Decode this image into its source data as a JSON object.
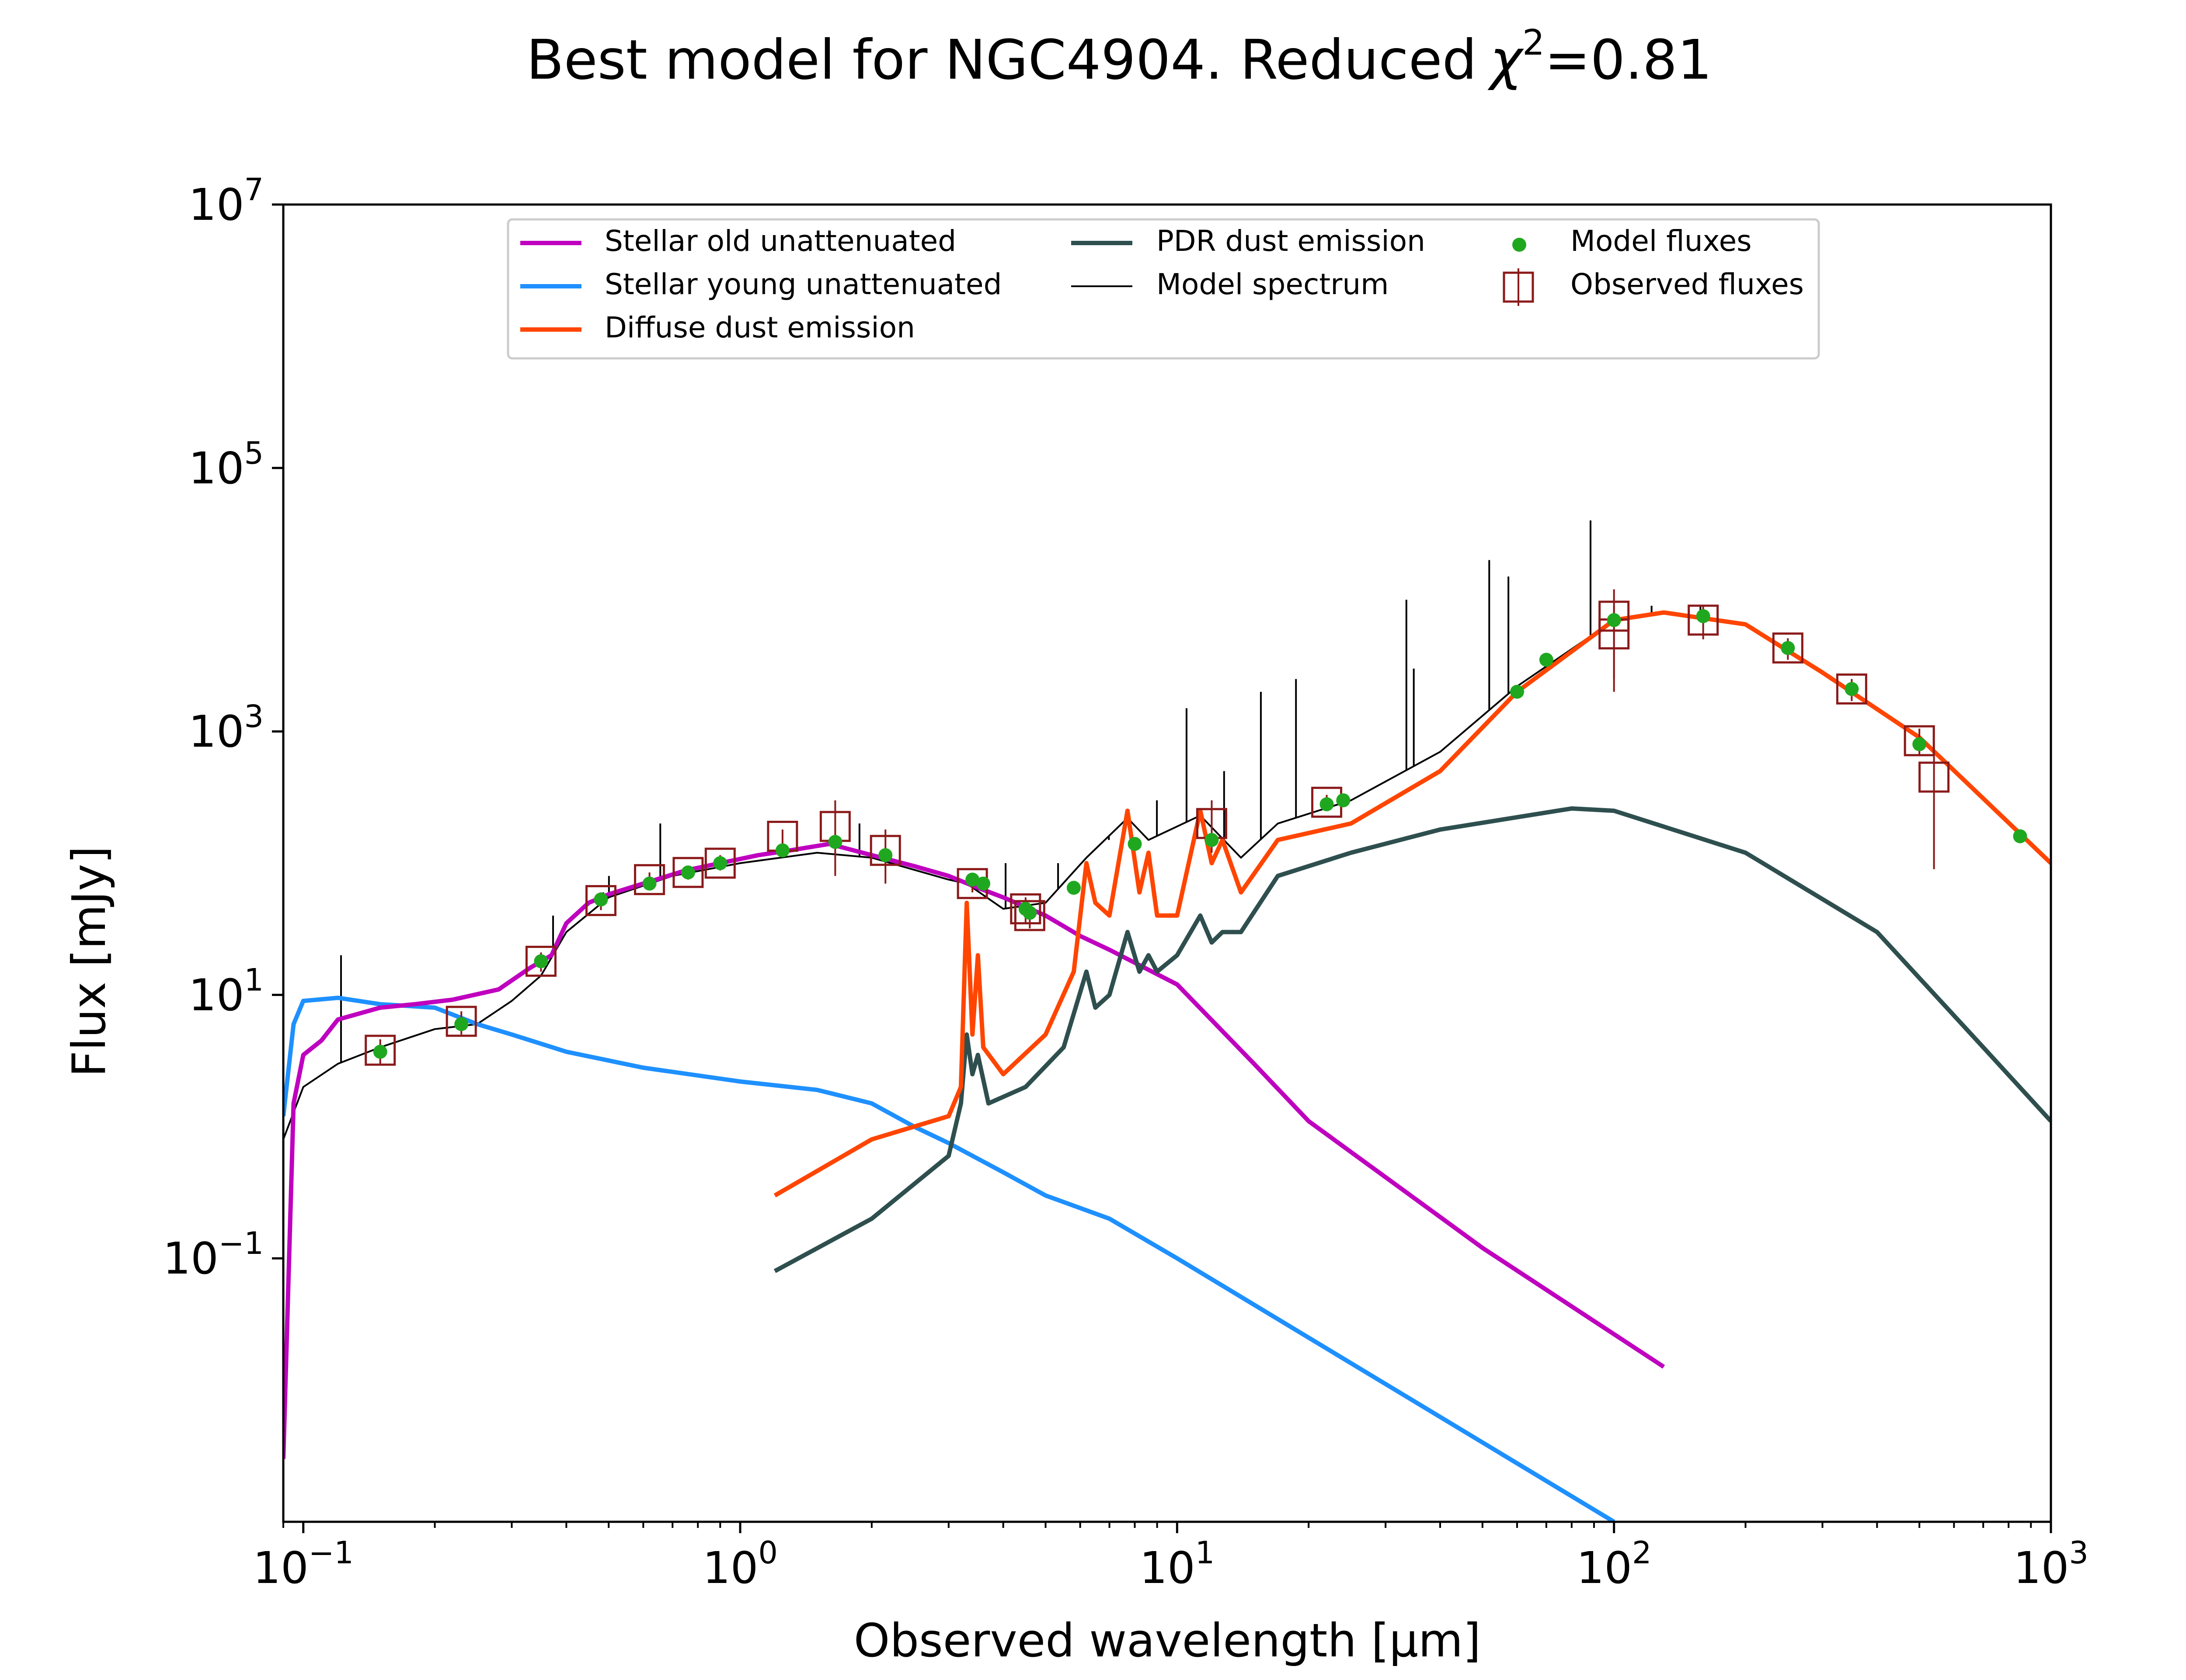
{
  "chart_data": {
    "type": "line",
    "title": "Best model for NGC4904. Reduced",
    "title_chi": "χ",
    "title_chi_exp": "2",
    "title_value": "=0.81",
    "xlabel": "Observed wavelength [μm]",
    "ylabel": "Flux [mJy]",
    "xscale": "log",
    "yscale": "log",
    "xlim": [
      0.09,
      1000
    ],
    "ylim": [
      0.001,
      10000000
    ],
    "grid": false,
    "legend_position": "top-center",
    "x_ticks": [
      {
        "value": 0.1,
        "base": "10",
        "exp": "−1"
      },
      {
        "value": 1,
        "base": "10",
        "exp": "0"
      },
      {
        "value": 10,
        "base": "10",
        "exp": "1"
      },
      {
        "value": 100,
        "base": "10",
        "exp": "2"
      },
      {
        "value": 1000,
        "base": "10",
        "exp": "3"
      }
    ],
    "y_ticks": [
      {
        "value": 0.1,
        "base": "10",
        "exp": "−1"
      },
      {
        "value": 10,
        "base": "10",
        "exp": "1"
      },
      {
        "value": 1000,
        "base": "10",
        "exp": "3"
      },
      {
        "value": 100000,
        "base": "10",
        "exp": "5"
      },
      {
        "value": 10000000,
        "base": "10",
        "exp": "7"
      }
    ],
    "series": [
      {
        "name": "Stellar old unattenuated",
        "color": "#bf00bf",
        "kind": "line",
        "points": [
          [
            0.09,
            0.003
          ],
          [
            0.095,
            1.5
          ],
          [
            0.1,
            3.5
          ],
          [
            0.11,
            4.5
          ],
          [
            0.12,
            6.5
          ],
          [
            0.15,
            8.0
          ],
          [
            0.18,
            8.5
          ],
          [
            0.22,
            9.2
          ],
          [
            0.28,
            11.0
          ],
          [
            0.33,
            16.0
          ],
          [
            0.37,
            20.0
          ],
          [
            0.4,
            35.0
          ],
          [
            0.45,
            50.0
          ],
          [
            0.5,
            58.0
          ],
          [
            0.6,
            70.0
          ],
          [
            0.75,
            88.0
          ],
          [
            0.9,
            100.0
          ],
          [
            1.1,
            115.0
          ],
          [
            1.3,
            125.0
          ],
          [
            1.6,
            140.0
          ],
          [
            2.0,
            115.0
          ],
          [
            2.5,
            95.0
          ],
          [
            3.0,
            80.0
          ],
          [
            3.5,
            65.0
          ],
          [
            4.0,
            55.0
          ],
          [
            5.0,
            40.0
          ],
          [
            6.0,
            28.0
          ],
          [
            7.0,
            22.0
          ],
          [
            10.0,
            12.0
          ],
          [
            15.0,
            3.0
          ],
          [
            20.0,
            1.1
          ],
          [
            50.0,
            0.12
          ],
          [
            130.0,
            0.015
          ]
        ]
      },
      {
        "name": "Stellar young unattenuated",
        "color": "#1e90ff",
        "kind": "line",
        "points": [
          [
            0.09,
            1.2
          ],
          [
            0.095,
            6.0
          ],
          [
            0.1,
            9.0
          ],
          [
            0.12,
            9.5
          ],
          [
            0.15,
            8.5
          ],
          [
            0.2,
            8.0
          ],
          [
            0.25,
            6.0
          ],
          [
            0.3,
            5.0
          ],
          [
            0.4,
            3.7
          ],
          [
            0.6,
            2.8
          ],
          [
            1.0,
            2.2
          ],
          [
            1.5,
            1.9
          ],
          [
            2.0,
            1.5
          ],
          [
            2.5,
            1.0
          ],
          [
            3.0,
            0.75
          ],
          [
            4.0,
            0.45
          ],
          [
            5.0,
            0.3
          ],
          [
            7.0,
            0.2
          ],
          [
            10.0,
            0.1
          ],
          [
            20.0,
            0.025
          ],
          [
            50.0,
            0.004
          ],
          [
            100.0,
            0.001
          ]
        ]
      },
      {
        "name": "Diffuse dust emission",
        "color": "#ff4500",
        "kind": "line",
        "points": [
          [
            1.2,
            0.3
          ],
          [
            2.0,
            0.8
          ],
          [
            3.0,
            1.2
          ],
          [
            3.2,
            2.0
          ],
          [
            3.3,
            50.0
          ],
          [
            3.4,
            5.0
          ],
          [
            3.5,
            20.0
          ],
          [
            3.6,
            4.0
          ],
          [
            4.0,
            2.5
          ],
          [
            5.0,
            5.0
          ],
          [
            5.8,
            15.0
          ],
          [
            6.2,
            100.0
          ],
          [
            6.5,
            50.0
          ],
          [
            7.0,
            40.0
          ],
          [
            7.7,
            250.0
          ],
          [
            8.2,
            60.0
          ],
          [
            8.6,
            120.0
          ],
          [
            9.0,
            40.0
          ],
          [
            10.0,
            40.0
          ],
          [
            11.3,
            250.0
          ],
          [
            12.0,
            100.0
          ],
          [
            12.7,
            150.0
          ],
          [
            14.0,
            60.0
          ],
          [
            17.0,
            150.0
          ],
          [
            25.0,
            200.0
          ],
          [
            40.0,
            500.0
          ],
          [
            60.0,
            2000.0
          ],
          [
            100.0,
            7000.0
          ],
          [
            130.0,
            8000.0
          ],
          [
            200.0,
            6500.0
          ],
          [
            300.0,
            2800.0
          ],
          [
            500.0,
            900.0
          ],
          [
            1000.0,
            100.0
          ]
        ]
      },
      {
        "name": "PDR dust emission",
        "color": "#2f4f4f",
        "kind": "line",
        "points": [
          [
            1.2,
            0.08
          ],
          [
            2.0,
            0.2
          ],
          [
            3.0,
            0.6
          ],
          [
            3.2,
            1.5
          ],
          [
            3.3,
            5.0
          ],
          [
            3.4,
            2.5
          ],
          [
            3.5,
            3.5
          ],
          [
            3.7,
            1.5
          ],
          [
            4.5,
            2.0
          ],
          [
            5.5,
            4.0
          ],
          [
            6.2,
            15.0
          ],
          [
            6.5,
            8.0
          ],
          [
            7.0,
            10.0
          ],
          [
            7.7,
            30.0
          ],
          [
            8.2,
            15.0
          ],
          [
            8.6,
            20.0
          ],
          [
            9.0,
            15.0
          ],
          [
            10.0,
            20.0
          ],
          [
            11.3,
            40.0
          ],
          [
            12.0,
            25.0
          ],
          [
            12.7,
            30.0
          ],
          [
            14.0,
            30.0
          ],
          [
            17.0,
            80.0
          ],
          [
            25.0,
            120.0
          ],
          [
            40.0,
            180.0
          ],
          [
            80.0,
            260.0
          ],
          [
            100.0,
            250.0
          ],
          [
            200.0,
            120.0
          ],
          [
            400.0,
            30.0
          ],
          [
            700.0,
            4.0
          ],
          [
            1000.0,
            1.1
          ]
        ]
      },
      {
        "name": "Model spectrum",
        "color": "#000000",
        "kind": "line",
        "points": [
          [
            0.09,
            0.8
          ],
          [
            0.1,
            2.0
          ],
          [
            0.12,
            3.0
          ],
          [
            0.15,
            4.0
          ],
          [
            0.2,
            5.5
          ],
          [
            0.25,
            6.0
          ],
          [
            0.3,
            9.0
          ],
          [
            0.35,
            14.0
          ],
          [
            0.4,
            30.0
          ],
          [
            0.5,
            55.0
          ],
          [
            0.7,
            80.0
          ],
          [
            1.0,
            100.0
          ],
          [
            1.5,
            120.0
          ],
          [
            2.0,
            110.0
          ],
          [
            3.0,
            75.0
          ],
          [
            3.3,
            70.0
          ],
          [
            4.0,
            45.0
          ],
          [
            5.0,
            50.0
          ],
          [
            6.2,
            110.0
          ],
          [
            7.7,
            220.0
          ],
          [
            8.6,
            150.0
          ],
          [
            11.3,
            230.0
          ],
          [
            14.0,
            110.0
          ],
          [
            17.0,
            200.0
          ],
          [
            25.0,
            300.0
          ],
          [
            40.0,
            700.0
          ],
          [
            60.0,
            2200.0
          ],
          [
            100.0,
            7000.0
          ],
          [
            130.0,
            8000.0
          ],
          [
            200.0,
            6500.0
          ],
          [
            300.0,
            2800.0
          ],
          [
            500.0,
            900.0
          ],
          [
            1000.0,
            100.0
          ]
        ]
      },
      {
        "name": "Model fluxes",
        "color": "#1fa81f",
        "kind": "scatter",
        "points": [
          [
            0.15,
            3.7
          ],
          [
            0.23,
            6.0
          ],
          [
            0.35,
            18.0
          ],
          [
            0.48,
            53.0
          ],
          [
            0.62,
            70.0
          ],
          [
            0.76,
            85.0
          ],
          [
            0.9,
            100.0
          ],
          [
            1.25,
            125.0
          ],
          [
            1.65,
            145.0
          ],
          [
            2.15,
            115.0
          ],
          [
            3.4,
            75.0
          ],
          [
            3.6,
            70.0
          ],
          [
            4.5,
            45.0
          ],
          [
            4.6,
            42.0
          ],
          [
            5.8,
            65.0
          ],
          [
            8.0,
            140.0
          ],
          [
            12.0,
            150.0
          ],
          [
            22.0,
            280.0
          ],
          [
            24.0,
            300.0
          ],
          [
            60.0,
            2000.0
          ],
          [
            70.0,
            3500.0
          ],
          [
            100.0,
            7000.0
          ],
          [
            160.0,
            7500.0
          ],
          [
            250.0,
            4300.0
          ],
          [
            350.0,
            2100.0
          ],
          [
            500.0,
            800.0
          ],
          [
            850.0,
            160.0
          ]
        ]
      },
      {
        "name": "Observed fluxes",
        "color": "#8b1a1a",
        "kind": "errorbar",
        "points": [
          {
            "x": 0.15,
            "y": 3.8,
            "lo": 3.0,
            "hi": 4.6
          },
          {
            "x": 0.23,
            "y": 6.3,
            "lo": 5.0,
            "hi": 7.5
          },
          {
            "x": 0.35,
            "y": 18.0,
            "lo": 15.0,
            "hi": 21.0
          },
          {
            "x": 0.48,
            "y": 52.0,
            "lo": 44.0,
            "hi": 60.0
          },
          {
            "x": 0.62,
            "y": 75.0,
            "lo": 65.0,
            "hi": 85.0
          },
          {
            "x": 0.76,
            "y": 85.0,
            "lo": 75.0,
            "hi": 95.0
          },
          {
            "x": 0.9,
            "y": 100.0,
            "lo": 88.0,
            "hi": 115.0
          },
          {
            "x": 1.25,
            "y": 160.0,
            "lo": 140.0,
            "hi": 180.0
          },
          {
            "x": 1.65,
            "y": 190.0,
            "lo": 80.0,
            "hi": 300.0
          },
          {
            "x": 2.15,
            "y": 125.0,
            "lo": 70.0,
            "hi": 180.0
          },
          {
            "x": 3.4,
            "y": 70.0,
            "lo": 60.0,
            "hi": 80.0
          },
          {
            "x": 4.5,
            "y": 45.0,
            "lo": 35.0,
            "hi": 55.0
          },
          {
            "x": 4.6,
            "y": 40.0,
            "lo": 32.0,
            "hi": 48.0
          },
          {
            "x": 12.0,
            "y": 200.0,
            "lo": 120.0,
            "hi": 300.0
          },
          {
            "x": 22.0,
            "y": 290.0,
            "lo": 250.0,
            "hi": 330.0
          },
          {
            "x": 100.0,
            "y": 7500.0,
            "lo": 2500.0,
            "hi": 12000.0
          },
          {
            "x": 100.0,
            "y": 5500.0,
            "lo": 2000.0,
            "hi": 9000.0
          },
          {
            "x": 160.0,
            "y": 7000.0,
            "lo": 5000.0,
            "hi": 9000.0
          },
          {
            "x": 250.0,
            "y": 4300.0,
            "lo": 3500.0,
            "hi": 5100.0
          },
          {
            "x": 350.0,
            "y": 2100.0,
            "lo": 1700.0,
            "hi": 2500.0
          },
          {
            "x": 500.0,
            "y": 850.0,
            "lo": 650.0,
            "hi": 1050.0
          },
          {
            "x": 540.0,
            "y": 450.0,
            "lo": 90.0,
            "hi": 800.0
          }
        ]
      }
    ],
    "emission_lines": [
      [
        0.122,
        20.0
      ],
      [
        0.373,
        40.0
      ],
      [
        0.4861,
        60.0
      ],
      [
        0.5007,
        80.0
      ],
      [
        0.6563,
        200.0
      ],
      [
        1.875,
        200.0
      ],
      [
        4.05,
        100.0
      ],
      [
        5.34,
        100.0
      ],
      [
        6.98,
        150.0
      ],
      [
        8.99,
        300.0
      ],
      [
        10.51,
        1500.0
      ],
      [
        12.81,
        500.0
      ],
      [
        15.55,
        2000.0
      ],
      [
        18.71,
        2500.0
      ],
      [
        33.48,
        10000.0
      ],
      [
        34.81,
        3000.0
      ],
      [
        51.81,
        20000.0
      ],
      [
        57.32,
        15000.0
      ],
      [
        88.36,
        40000.0
      ],
      [
        121.9,
        9000.0
      ],
      [
        157.7,
        9000.0
      ]
    ]
  }
}
